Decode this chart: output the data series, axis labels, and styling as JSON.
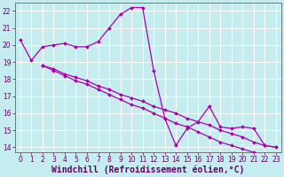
{
  "background_color": "#c5ecee",
  "grid_color": "#ffffff",
  "line_color": "#aa00aa",
  "marker_color": "#aa00aa",
  "xlabel": "Windchill (Refroidissement éolien,°C)",
  "xlim": [
    -0.5,
    23.5
  ],
  "ylim": [
    13.7,
    22.5
  ],
  "yticks": [
    14,
    15,
    16,
    17,
    18,
    19,
    20,
    21,
    22
  ],
  "xticks": [
    0,
    1,
    2,
    3,
    4,
    5,
    6,
    7,
    8,
    9,
    10,
    11,
    12,
    13,
    14,
    15,
    16,
    17,
    18,
    19,
    20,
    21,
    22,
    23
  ],
  "line1_x": [
    0,
    1,
    2,
    3,
    4,
    5,
    6,
    7,
    8,
    9,
    10,
    11,
    12,
    13,
    14,
    15,
    16,
    17,
    18,
    19,
    20,
    21,
    22,
    23
  ],
  "line1_y": [
    20.3,
    19.1,
    19.9,
    20.0,
    20.1,
    19.9,
    19.9,
    20.2,
    21.0,
    21.8,
    22.2,
    22.2,
    18.5,
    15.7,
    14.1,
    15.1,
    15.5,
    16.4,
    15.2,
    15.1,
    15.2,
    15.1,
    14.1,
    14.0
  ],
  "line2_x": [
    2,
    3,
    4,
    5,
    6,
    7,
    8,
    9,
    10,
    11,
    12,
    13,
    14,
    15,
    16,
    17,
    18,
    19,
    20,
    21,
    22,
    23
  ],
  "line2_y": [
    18.8,
    18.6,
    18.3,
    18.1,
    17.9,
    17.6,
    17.4,
    17.1,
    16.9,
    16.7,
    16.4,
    16.2,
    16.0,
    15.7,
    15.5,
    15.3,
    15.0,
    14.8,
    14.6,
    14.3,
    14.1,
    14.0
  ],
  "line3_x": [
    2,
    3,
    4,
    5,
    6,
    7,
    8,
    9,
    10,
    11,
    12,
    13,
    14,
    15,
    16,
    17,
    18,
    19,
    20,
    21,
    22,
    23
  ],
  "line3_y": [
    18.8,
    18.5,
    18.2,
    17.9,
    17.7,
    17.4,
    17.1,
    16.8,
    16.5,
    16.3,
    16.0,
    15.7,
    15.4,
    15.2,
    14.9,
    14.6,
    14.3,
    14.1,
    13.9,
    13.7,
    13.5,
    13.3
  ],
  "xlabel_color": "#660066",
  "tick_color": "#660066",
  "tick_fontsize": 5.5,
  "xlabel_fontsize": 7,
  "spine_color": "#666666"
}
